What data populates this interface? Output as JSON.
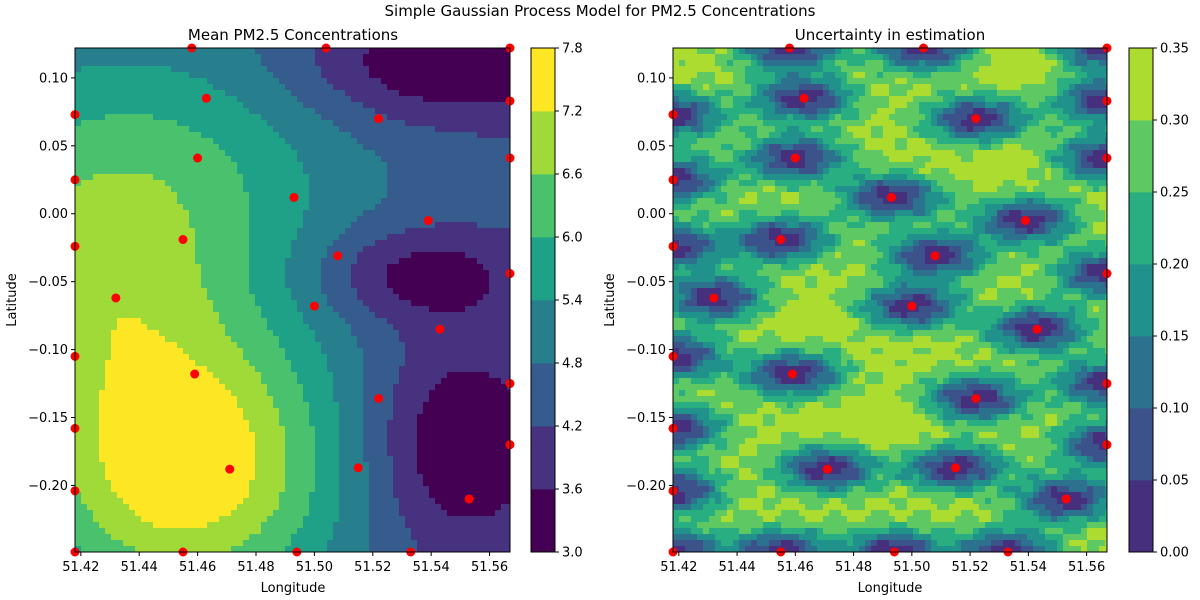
{
  "figure": {
    "suptitle": "Simple Gaussian Process Model for PM2.5 Concentrations"
  },
  "colors": {
    "sample_point": "#ff0000",
    "viridis_levels_8": [
      "#440154",
      "#46327e",
      "#365c8d",
      "#277f8e",
      "#1fa187",
      "#4ac16d",
      "#a0da39",
      "#fde725"
    ],
    "viridis_levels_7": [
      "#46307e",
      "#3b528b",
      "#2c728e",
      "#21918c",
      "#28ae80",
      "#5ec962",
      "#addc30"
    ]
  },
  "chart_data": [
    {
      "type": "contour",
      "title": "Mean PM2.5 Concentrations",
      "xlabel": "Longitude",
      "ylabel": "Latitude",
      "xlim": [
        51.418,
        51.567
      ],
      "ylim": [
        -0.249,
        0.122
      ],
      "xticks": [
        "51.42",
        "51.44",
        "51.46",
        "51.48",
        "51.50",
        "51.52",
        "51.54",
        "51.56"
      ],
      "xtick_values": [
        51.42,
        51.44,
        51.46,
        51.48,
        51.5,
        51.52,
        51.54,
        51.56
      ],
      "yticks": [
        "0.10",
        "0.05",
        "0.00",
        "−0.05",
        "−0.10",
        "−0.15",
        "−0.20"
      ],
      "ytick_values": [
        0.1,
        0.05,
        0.0,
        -0.05,
        -0.1,
        -0.15,
        -0.2
      ],
      "colorbar": {
        "levels": [
          3.0,
          3.6,
          4.2,
          4.8,
          5.4,
          6.0,
          6.6,
          7.2,
          7.8
        ],
        "tick_labels": [
          "3.0",
          "3.6",
          "4.2",
          "4.8",
          "5.4",
          "6.0",
          "6.6",
          "7.2",
          "7.8"
        ]
      },
      "field": {
        "base": 4.4,
        "bumps": [
          {
            "x": 51.455,
            "y": -0.185,
            "amp": 3.4,
            "sx": 0.038,
            "sy": 0.075
          },
          {
            "x": 51.44,
            "y": 0.02,
            "amp": 1.9,
            "sx": 0.05,
            "sy": 0.08
          },
          {
            "x": 51.42,
            "y": -0.06,
            "amp": 1.0,
            "sx": 0.03,
            "sy": 0.06
          },
          {
            "x": 51.545,
            "y": 0.11,
            "amp": -1.5,
            "sx": 0.035,
            "sy": 0.03
          },
          {
            "x": 51.535,
            "y": -0.045,
            "amp": -1.3,
            "sx": 0.025,
            "sy": 0.025
          },
          {
            "x": 51.55,
            "y": -0.17,
            "amp": -1.5,
            "sx": 0.022,
            "sy": 0.055
          }
        ]
      },
      "points": [
        {
          "x": 51.418,
          "y": 0.073
        },
        {
          "x": 51.418,
          "y": 0.025
        },
        {
          "x": 51.418,
          "y": -0.024
        },
        {
          "x": 51.418,
          "y": -0.105
        },
        {
          "x": 51.418,
          "y": -0.158
        },
        {
          "x": 51.418,
          "y": -0.204
        },
        {
          "x": 51.418,
          "y": -0.249
        },
        {
          "x": 51.432,
          "y": -0.062
        },
        {
          "x": 51.455,
          "y": -0.019
        },
        {
          "x": 51.455,
          "y": -0.249
        },
        {
          "x": 51.458,
          "y": 0.122
        },
        {
          "x": 51.459,
          "y": -0.118
        },
        {
          "x": 51.46,
          "y": 0.041
        },
        {
          "x": 51.463,
          "y": 0.085
        },
        {
          "x": 51.471,
          "y": -0.188
        },
        {
          "x": 51.493,
          "y": 0.012
        },
        {
          "x": 51.494,
          "y": -0.249
        },
        {
          "x": 51.5,
          "y": -0.068
        },
        {
          "x": 51.504,
          "y": 0.122
        },
        {
          "x": 51.508,
          "y": -0.031
        },
        {
          "x": 51.515,
          "y": -0.187
        },
        {
          "x": 51.522,
          "y": 0.07
        },
        {
          "x": 51.522,
          "y": -0.136
        },
        {
          "x": 51.533,
          "y": -0.249
        },
        {
          "x": 51.539,
          "y": -0.005
        },
        {
          "x": 51.543,
          "y": -0.085
        },
        {
          "x": 51.553,
          "y": -0.21
        },
        {
          "x": 51.567,
          "y": 0.122
        },
        {
          "x": 51.567,
          "y": 0.083
        },
        {
          "x": 51.567,
          "y": 0.041
        },
        {
          "x": 51.567,
          "y": -0.044
        },
        {
          "x": 51.567,
          "y": -0.125
        },
        {
          "x": 51.567,
          "y": -0.17
        }
      ]
    },
    {
      "type": "contour",
      "title": "Uncertainty in estimation",
      "xlabel": "Longitude",
      "ylabel": "Latitude",
      "xlim": [
        51.418,
        51.567
      ],
      "ylim": [
        -0.249,
        0.122
      ],
      "xticks": [
        "51.42",
        "51.44",
        "51.46",
        "51.48",
        "51.50",
        "51.52",
        "51.54",
        "51.56"
      ],
      "xtick_values": [
        51.42,
        51.44,
        51.46,
        51.48,
        51.5,
        51.52,
        51.54,
        51.56
      ],
      "yticks": [
        "0.10",
        "0.05",
        "0.00",
        "−0.05",
        "−0.10",
        "−0.15",
        "−0.20"
      ],
      "ytick_values": [
        0.1,
        0.05,
        0.0,
        -0.05,
        -0.1,
        -0.15,
        -0.2
      ],
      "colorbar": {
        "levels": [
          0.0,
          0.05,
          0.1,
          0.15,
          0.2,
          0.25,
          0.3,
          0.35
        ],
        "tick_labels": [
          "0.00",
          "0.05",
          "0.10",
          "0.15",
          "0.20",
          "0.25",
          "0.30",
          "0.35"
        ]
      },
      "field": {
        "max": 0.33,
        "length_scale": 0.012,
        "highlights": [
          {
            "x": 51.535,
            "y": 0.11,
            "amp": 0.06,
            "s": 0.008
          },
          {
            "x": 51.49,
            "y": -0.155,
            "amp": 0.05,
            "s": 0.012
          },
          {
            "x": 51.465,
            "y": -0.08,
            "amp": 0.04,
            "s": 0.008
          },
          {
            "x": 51.53,
            "y": 0.035,
            "amp": 0.03,
            "s": 0.009
          }
        ]
      },
      "points": [
        {
          "x": 51.418,
          "y": 0.073
        },
        {
          "x": 51.418,
          "y": 0.025
        },
        {
          "x": 51.418,
          "y": -0.024
        },
        {
          "x": 51.418,
          "y": -0.105
        },
        {
          "x": 51.418,
          "y": -0.158
        },
        {
          "x": 51.418,
          "y": -0.204
        },
        {
          "x": 51.418,
          "y": -0.249
        },
        {
          "x": 51.432,
          "y": -0.062
        },
        {
          "x": 51.455,
          "y": -0.019
        },
        {
          "x": 51.455,
          "y": -0.249
        },
        {
          "x": 51.458,
          "y": 0.122
        },
        {
          "x": 51.459,
          "y": -0.118
        },
        {
          "x": 51.46,
          "y": 0.041
        },
        {
          "x": 51.463,
          "y": 0.085
        },
        {
          "x": 51.471,
          "y": -0.188
        },
        {
          "x": 51.493,
          "y": 0.012
        },
        {
          "x": 51.494,
          "y": -0.249
        },
        {
          "x": 51.5,
          "y": -0.068
        },
        {
          "x": 51.504,
          "y": 0.122
        },
        {
          "x": 51.508,
          "y": -0.031
        },
        {
          "x": 51.515,
          "y": -0.187
        },
        {
          "x": 51.522,
          "y": 0.07
        },
        {
          "x": 51.522,
          "y": -0.136
        },
        {
          "x": 51.533,
          "y": -0.249
        },
        {
          "x": 51.539,
          "y": -0.005
        },
        {
          "x": 51.543,
          "y": -0.085
        },
        {
          "x": 51.553,
          "y": -0.21
        },
        {
          "x": 51.567,
          "y": 0.122
        },
        {
          "x": 51.567,
          "y": 0.083
        },
        {
          "x": 51.567,
          "y": 0.041
        },
        {
          "x": 51.567,
          "y": -0.044
        },
        {
          "x": 51.567,
          "y": -0.125
        },
        {
          "x": 51.567,
          "y": -0.17
        }
      ]
    }
  ]
}
